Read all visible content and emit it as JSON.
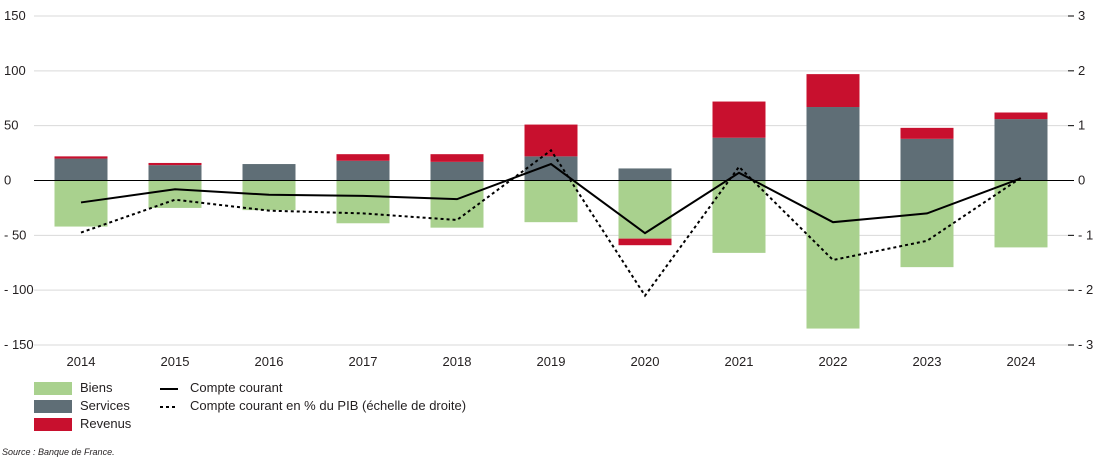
{
  "chart_data": {
    "type": "bar",
    "stacked": true,
    "categories": [
      "2014",
      "2015",
      "2016",
      "2017",
      "2018",
      "2019",
      "2020",
      "2021",
      "2022",
      "2023",
      "2024"
    ],
    "ylim": [
      -150,
      150
    ],
    "y2lim": [
      -3,
      3
    ],
    "yticks": [
      150,
      100,
      50,
      0,
      -50,
      -100,
      -150
    ],
    "y2ticks": [
      3,
      2,
      1,
      0,
      -1,
      -2,
      -3
    ],
    "ytick_labels": [
      "150",
      "100",
      "50",
      "0",
      "- 50",
      "- 100",
      "- 150"
    ],
    "y2tick_labels": [
      "3",
      "2",
      "1",
      "0",
      "- 1",
      "- 2",
      "- 3"
    ],
    "grid": true,
    "series": [
      {
        "name": "Biens",
        "kind": "bar",
        "color": "#a9d18e",
        "values": [
          -42,
          -25,
          -27,
          -39,
          -43,
          -38,
          -53,
          -66,
          -135,
          -79,
          -61
        ]
      },
      {
        "name": "Services",
        "kind": "bar",
        "color": "#5f6e76",
        "values": [
          20,
          14,
          15,
          18,
          17,
          22,
          11,
          39,
          67,
          38,
          56
        ]
      },
      {
        "name": "Revenus",
        "kind": "bar",
        "color": "#c8102e",
        "values": [
          2,
          2,
          0,
          6,
          7,
          29,
          -6,
          33,
          30,
          10,
          6
        ]
      },
      {
        "name": "Compte courant",
        "kind": "line",
        "axis": "left",
        "color": "#000000",
        "dash": "solid",
        "values": [
          -20,
          -8,
          -13,
          -14,
          -17,
          15,
          -48,
          7,
          -38,
          -30,
          2
        ]
      },
      {
        "name": "Compte courant en % du PIB (échelle de droite)",
        "kind": "line",
        "axis": "right",
        "color": "#000000",
        "dash": "dotted",
        "values": [
          -0.95,
          -0.35,
          -0.55,
          -0.6,
          -0.72,
          0.55,
          -2.1,
          0.25,
          -1.45,
          -1.1,
          0.05
        ]
      }
    ],
    "legend_position": "bottom-left"
  },
  "legend": {
    "biens": "Biens",
    "services": "Services",
    "revenus": "Revenus",
    "compte_courant": "Compte courant",
    "compte_courant_pib": "Compte courant en % du PIB (échelle de droite)"
  },
  "source": "Source : Banque de France."
}
